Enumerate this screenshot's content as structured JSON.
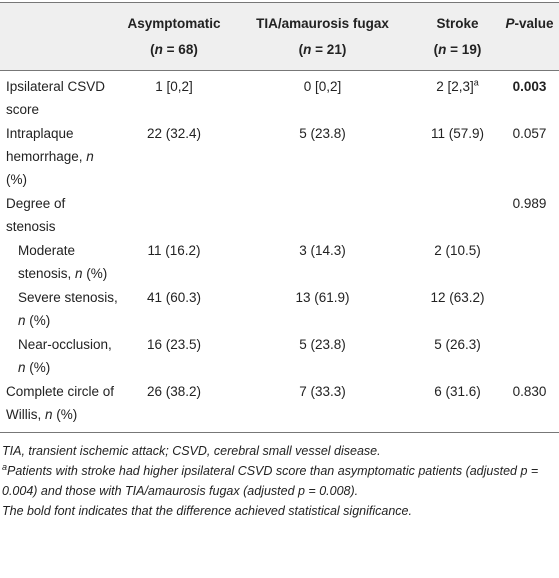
{
  "table": {
    "header": [
      [],
      {
        "title": "Asymptomatic",
        "n": [
          "(",
          {
            "text": "n",
            "style": "italic"
          },
          " = 68)"
        ]
      },
      {
        "title": "TIA/amaurosis fugax",
        "n": [
          "(",
          {
            "text": "n",
            "style": "italic"
          },
          " = 21)"
        ]
      },
      {
        "title": "Stroke",
        "n": [
          "(",
          {
            "text": "n",
            "style": "italic"
          },
          " = 19)"
        ]
      },
      [
        {
          "text": "P",
          "style": "italic"
        },
        "-value"
      ]
    ],
    "rows": [
      [
        [
          "Ipsilateral CSVD score"
        ],
        [
          "1 [0,2]"
        ],
        [
          "0 [0,2]"
        ],
        [
          "2 [2,3]",
          {
            "text": "a",
            "style": "sup"
          }
        ],
        [
          {
            "text": "0.003",
            "style": "bold"
          }
        ]
      ],
      [
        [
          "Intraplaque hemorrhage, ",
          {
            "text": "n",
            "style": "italic"
          },
          " (%)"
        ],
        [
          "22 (32.4)"
        ],
        [
          "5 (23.8)"
        ],
        [
          "11 (57.9)"
        ],
        [
          "0.057"
        ]
      ],
      [
        [
          "Degree of stenosis"
        ],
        [],
        [],
        [],
        [
          "0.989"
        ]
      ],
      [
        [
          "Moderate stenosis, ",
          {
            "text": "n",
            "style": "italic"
          },
          " (%)"
        ],
        [
          "11 (16.2)"
        ],
        [
          "3 (14.3)"
        ],
        [
          "2 (10.5)"
        ],
        []
      ],
      [
        [
          "Severe stenosis, ",
          {
            "text": "n",
            "style": "italic"
          },
          " (%)"
        ],
        [
          "41 (60.3)"
        ],
        [
          "13 (61.9)"
        ],
        [
          "12 (63.2)"
        ],
        []
      ],
      [
        [
          "Near-occlusion, ",
          {
            "text": "n",
            "style": "italic"
          },
          " (%)"
        ],
        [
          "16 (23.5)"
        ],
        [
          "5 (23.8)"
        ],
        [
          "5 (26.3)"
        ],
        []
      ],
      [
        [
          "Complete circle of Willis, ",
          {
            "text": "n",
            "style": "italic"
          },
          " (%)"
        ],
        [
          "26 (38.2)"
        ],
        [
          "7 (33.3)"
        ],
        [
          "6 (31.6)"
        ],
        [
          "0.830"
        ]
      ]
    ]
  },
  "footnotes": [
    [
      "TIA, transient ischemic attack; CSVD, cerebral small vessel disease."
    ],
    [
      {
        "text": "a",
        "style": "sup"
      },
      "Patients with stroke had higher ipsilateral CSVD score than asymptomatic patients (adjusted p = 0.004) and those with TIA/amaurosis fugax (adjusted p = 0.008)."
    ],
    [
      "The bold font indicates that the difference achieved statistical significance."
    ]
  ]
}
